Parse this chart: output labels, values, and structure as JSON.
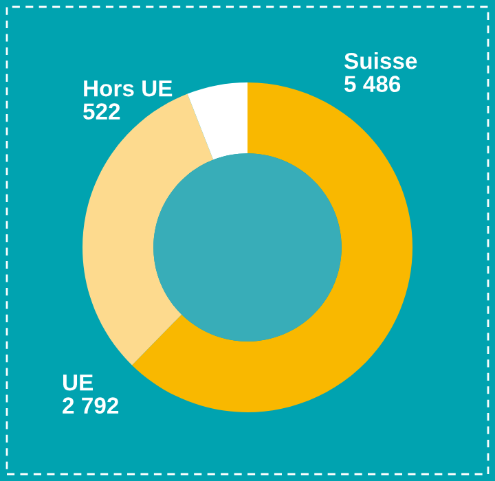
{
  "chart_data": {
    "type": "donut",
    "categories": [
      "Suisse",
      "UE",
      "Hors UE"
    ],
    "values": [
      5486,
      2792,
      522
    ],
    "colors": [
      "#f9b800",
      "#fdda8e",
      "#ffffff"
    ],
    "value_labels": [
      "5 486",
      "2 792",
      "522"
    ]
  }
}
